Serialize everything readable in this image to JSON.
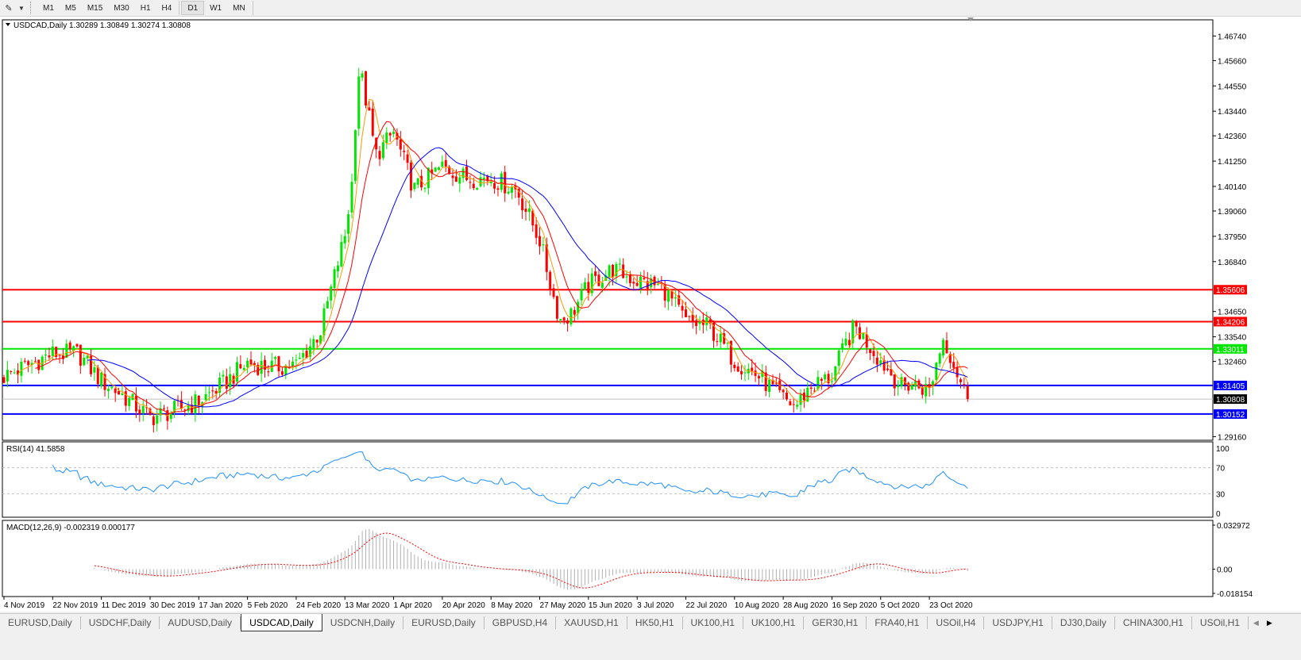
{
  "toolbar": {
    "timeframes": [
      "M1",
      "M5",
      "M15",
      "M30",
      "H1",
      "H4",
      "D1",
      "W1",
      "MN"
    ],
    "active_timeframe": "D1"
  },
  "chart": {
    "symbol_label": "USDCAD,Daily",
    "ohlc": "1.30289 1.30849 1.30274 1.30808",
    "colors": {
      "bull": "#00e600",
      "bear": "#ff0000",
      "ma_fast": "#ff9900",
      "ma_mid": "#ff0000",
      "ma_slow": "#0000ff",
      "rsi": "#1e90ff",
      "macd_signal": "#ff0000",
      "macd_hist": "#b0b0b0"
    }
  },
  "chart_data": {
    "type": "candlestick",
    "ylim": [
      1.29,
      1.4745
    ],
    "price_ticks": [
      "1.46740",
      "1.45660",
      "1.44550",
      "1.43440",
      "1.42360",
      "1.41250",
      "1.40140",
      "1.39060",
      "1.37950",
      "1.36840",
      "1.34650",
      "1.33540",
      "1.32460",
      "1.29160"
    ],
    "time_labels": [
      "4 Nov 2019",
      "22 Nov 2019",
      "11 Dec 2019",
      "30 Dec 2019",
      "17 Jan 2020",
      "5 Feb 2020",
      "24 Feb 2020",
      "13 Mar 2020",
      "1 Apr 2020",
      "20 Apr 2020",
      "8 May 2020",
      "27 May 2020",
      "15 Jun 2020",
      "3 Jul 2020",
      "22 Jul 2020",
      "10 Aug 2020",
      "28 Aug 2020",
      "16 Sep 2020",
      "5 Oct 2020",
      "23 Oct 2020"
    ],
    "approx_closes": [
      [
        "4 Nov 2019",
        1.318
      ],
      [
        "13 Nov 2019",
        1.323
      ],
      [
        "22 Nov 2019",
        1.328
      ],
      [
        "2 Dec 2019",
        1.328
      ],
      [
        "11 Dec 2019",
        1.316
      ],
      [
        "19 Dec 2019",
        1.31
      ],
      [
        "30 Dec 2019",
        1.3
      ],
      [
        "8 Jan 2020",
        1.303
      ],
      [
        "17 Jan 2020",
        1.307
      ],
      [
        "27 Jan 2020",
        1.315
      ],
      [
        "5 Feb 2020",
        1.324
      ],
      [
        "14 Feb 2020",
        1.322
      ],
      [
        "24 Feb 2020",
        1.323
      ],
      [
        "4 Mar 2020",
        1.338
      ],
      [
        "13 Mar 2020",
        1.38
      ],
      [
        "16 Mar 2020",
        1.405
      ],
      [
        "18 Mar 2020",
        1.452
      ],
      [
        "20 Mar 2020",
        1.447
      ],
      [
        "25 Mar 2020",
        1.415
      ],
      [
        "1 Apr 2020",
        1.425
      ],
      [
        "9 Apr 2020",
        1.4
      ],
      [
        "20 Apr 2020",
        1.41
      ],
      [
        "29 Apr 2020",
        1.405
      ],
      [
        "8 May 2020",
        1.405
      ],
      [
        "18 May 2020",
        1.4
      ],
      [
        "27 May 2020",
        1.378
      ],
      [
        "2 Jun 2020",
        1.35
      ],
      [
        "4 Jun 2020",
        1.343
      ],
      [
        "8 Jun 2020",
        1.345
      ],
      [
        "15 Jun 2020",
        1.358
      ],
      [
        "24 Jun 2020",
        1.365
      ],
      [
        "3 Jul 2020",
        1.36
      ],
      [
        "13 Jul 2020",
        1.357
      ],
      [
        "22 Jul 2020",
        1.342
      ],
      [
        "31 Jul 2020",
        1.34
      ],
      [
        "10 Aug 2020",
        1.325
      ],
      [
        "19 Aug 2020",
        1.318
      ],
      [
        "28 Aug 2020",
        1.308
      ],
      [
        "2 Sep 2020",
        1.305
      ],
      [
        "7 Sep 2020",
        1.313
      ],
      [
        "16 Sep 2020",
        1.318
      ],
      [
        "22 Sep 2020",
        1.334
      ],
      [
        "25 Sep 2020",
        1.34
      ],
      [
        "5 Oct 2020",
        1.325
      ],
      [
        "13 Oct 2020",
        1.313
      ],
      [
        "16 Oct 2020",
        1.315
      ],
      [
        "23 Oct 2020",
        1.312
      ],
      [
        "28 Oct 2020",
        1.335
      ],
      [
        "30 Oct 2020",
        1.33
      ],
      [
        "6 Nov 2020",
        1.308
      ]
    ],
    "levels": [
      {
        "price": 1.35606,
        "label": "1.35606",
        "color": "#ff0000"
      },
      {
        "price": 1.34206,
        "label": "1.34206",
        "color": "#ff0000"
      },
      {
        "price": 1.33011,
        "label": "1.33011",
        "color": "#00e600"
      },
      {
        "price": 1.31405,
        "label": "1.31405",
        "color": "#0000ff"
      },
      {
        "price": 1.30808,
        "label": "1.30808",
        "color": "#000000",
        "line": "#c0c0c0"
      },
      {
        "price": 1.30152,
        "label": "1.30152",
        "color": "#0000ff"
      }
    ],
    "rsi": {
      "label": "RSI(14) 41.5858",
      "ticks": [
        "100",
        "70",
        "30",
        "0"
      ],
      "levels": [
        70,
        30
      ]
    },
    "macd": {
      "label": "MACD(12,26,9) -0.002319 0.000177",
      "ticks": [
        "0.032972",
        "0.00",
        "-0.018154"
      ],
      "range": [
        -0.018154,
        0.032972
      ]
    }
  },
  "tabs": {
    "items": [
      "EURUSD,Daily",
      "USDCHF,Daily",
      "AUDUSD,Daily",
      "USDCAD,Daily",
      "USDCNH,Daily",
      "EURUSD,Daily",
      "GBPUSD,H4",
      "XAUUSD,H1",
      "HK50,H1",
      "UK100,H1",
      "UK100,H1",
      "GER30,H1",
      "FRA40,H1",
      "USOil,H4",
      "USDJPY,H1",
      "DJ30,Daily",
      "CHINA300,H1",
      "USOil,H1"
    ],
    "active": "USDCAD,Daily"
  }
}
